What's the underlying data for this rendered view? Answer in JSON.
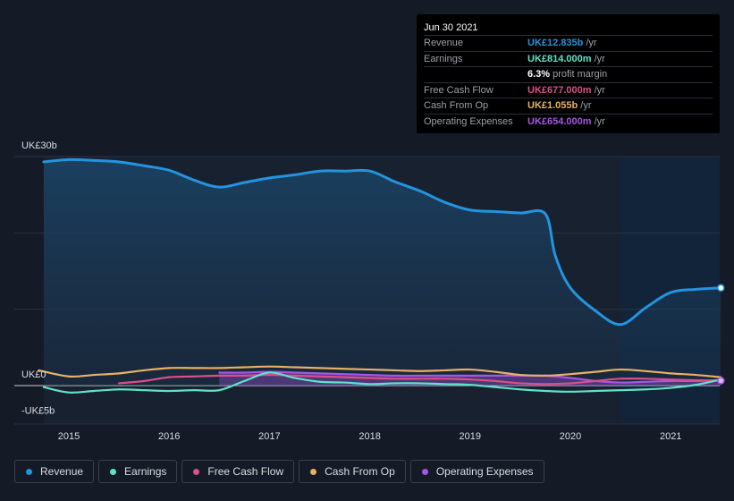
{
  "tooltip": {
    "date": "Jun 30 2021",
    "rows": [
      {
        "label": "Revenue",
        "value": "UK£12.835b",
        "unit": "/yr",
        "color": "#2394df"
      },
      {
        "label": "Earnings",
        "value": "UK£814.000m",
        "unit": "/yr",
        "color": "#5ee3c8"
      },
      {
        "label": "",
        "value": "6.3%",
        "unit": "profit margin",
        "color": "#ffffff"
      },
      {
        "label": "Free Cash Flow",
        "value": "UK£677.000m",
        "unit": "/yr",
        "color": "#d9508a"
      },
      {
        "label": "Cash From Op",
        "value": "UK£1.055b",
        "unit": "/yr",
        "color": "#e8b064"
      },
      {
        "label": "Operating Expenses",
        "value": "UK£654.000m",
        "unit": "/yr",
        "color": "#a855e6"
      }
    ]
  },
  "legend": [
    {
      "label": "Revenue",
      "color": "#2394df"
    },
    {
      "label": "Earnings",
      "color": "#5ee3c8"
    },
    {
      "label": "Free Cash Flow",
      "color": "#d9508a"
    },
    {
      "label": "Cash From Op",
      "color": "#e8b064"
    },
    {
      "label": "Operating Expenses",
      "color": "#a855e6"
    }
  ],
  "chart_data": {
    "type": "area",
    "ylim": [
      -5,
      30
    ],
    "y_tick_labels": [
      {
        "value": 30,
        "label": "UK£30b"
      },
      {
        "value": 0,
        "label": "UK£0"
      },
      {
        "value": -5,
        "label": "-UK£5b"
      }
    ],
    "x_ticks": [
      2015,
      2016,
      2017,
      2018,
      2019,
      2020,
      2021
    ],
    "xlim": [
      2014.7,
      2021.5
    ],
    "forecast_start": 2020.5,
    "series": [
      {
        "name": "Revenue",
        "color": "#2394df",
        "fill": true,
        "x": [
          2014.75,
          2015.0,
          2015.25,
          2015.5,
          2015.75,
          2016.0,
          2016.25,
          2016.5,
          2016.75,
          2017.0,
          2017.25,
          2017.5,
          2017.75,
          2018.0,
          2018.25,
          2018.5,
          2018.75,
          2019.0,
          2019.25,
          2019.5,
          2019.75,
          2019.85,
          2020.0,
          2020.25,
          2020.5,
          2020.75,
          2021.0,
          2021.25,
          2021.5
        ],
        "y": [
          29.3,
          29.6,
          29.5,
          29.3,
          28.8,
          28.2,
          26.9,
          26.0,
          26.6,
          27.2,
          27.6,
          28.1,
          28.1,
          28.1,
          26.7,
          25.5,
          24.0,
          23.0,
          22.8,
          22.6,
          22.5,
          17.0,
          12.8,
          9.8,
          8.0,
          10.2,
          12.2,
          12.6,
          12.8
        ]
      },
      {
        "name": "Earnings",
        "color": "#5ee3c8",
        "fill": false,
        "x": [
          2014.75,
          2015.0,
          2015.25,
          2015.5,
          2015.75,
          2016.0,
          2016.25,
          2016.5,
          2016.75,
          2017.0,
          2017.25,
          2017.5,
          2017.75,
          2018.0,
          2018.25,
          2018.5,
          2018.75,
          2019.0,
          2019.25,
          2019.5,
          2019.75,
          2020.0,
          2020.25,
          2020.5,
          2020.75,
          2021.0,
          2021.25,
          2021.5
        ],
        "y": [
          -0.2,
          -0.9,
          -0.7,
          -0.5,
          -0.6,
          -0.7,
          -0.6,
          -0.6,
          0.6,
          1.7,
          1.0,
          0.5,
          0.4,
          0.2,
          0.3,
          0.3,
          0.2,
          0.1,
          -0.2,
          -0.5,
          -0.7,
          -0.8,
          -0.7,
          -0.6,
          -0.5,
          -0.3,
          0.1,
          0.8
        ]
      },
      {
        "name": "Free Cash Flow",
        "color": "#d9508a",
        "fill": false,
        "x": [
          2015.5,
          2015.75,
          2016.0,
          2016.25,
          2016.5,
          2016.75,
          2017.0,
          2017.25,
          2017.5,
          2017.75,
          2018.0,
          2018.25,
          2018.5,
          2018.75,
          2019.0,
          2019.25,
          2019.5,
          2019.75,
          2020.0,
          2020.25,
          2020.5,
          2020.75,
          2021.0,
          2021.25,
          2021.5
        ],
        "y": [
          0.3,
          0.6,
          1.1,
          1.2,
          1.3,
          1.3,
          1.4,
          1.3,
          1.2,
          1.1,
          1.0,
          0.9,
          0.9,
          0.9,
          0.8,
          0.6,
          0.3,
          0.2,
          0.3,
          0.6,
          0.9,
          0.9,
          0.8,
          0.7,
          0.7
        ]
      },
      {
        "name": "Cash From Op",
        "color": "#e8b064",
        "fill": false,
        "x": [
          2014.7,
          2015.0,
          2015.25,
          2015.5,
          2015.75,
          2016.0,
          2016.25,
          2016.5,
          2016.75,
          2017.0,
          2017.25,
          2017.5,
          2017.75,
          2018.0,
          2018.25,
          2018.5,
          2018.75,
          2019.0,
          2019.25,
          2019.5,
          2019.75,
          2020.0,
          2020.25,
          2020.5,
          2020.75,
          2021.0,
          2021.25,
          2021.5
        ],
        "y": [
          2.0,
          1.2,
          1.4,
          1.6,
          2.0,
          2.3,
          2.3,
          2.3,
          2.4,
          2.5,
          2.4,
          2.3,
          2.2,
          2.1,
          2.0,
          1.9,
          2.0,
          2.1,
          1.8,
          1.4,
          1.3,
          1.5,
          1.8,
          2.1,
          1.9,
          1.6,
          1.4,
          1.1
        ]
      },
      {
        "name": "Operating Expenses",
        "color": "#a855e6",
        "fill": true,
        "x": [
          2016.5,
          2016.75,
          2017.0,
          2017.25,
          2017.5,
          2017.75,
          2018.0,
          2018.25,
          2018.5,
          2018.75,
          2019.0,
          2019.25,
          2019.5,
          2019.75,
          2020.0,
          2020.25,
          2020.5,
          2020.75,
          2021.0,
          2021.25,
          2021.5
        ],
        "y": [
          1.7,
          1.7,
          1.8,
          1.7,
          1.6,
          1.5,
          1.4,
          1.3,
          1.3,
          1.3,
          1.3,
          1.3,
          1.3,
          1.3,
          1.0,
          0.6,
          0.4,
          0.5,
          0.6,
          0.6,
          0.65
        ]
      }
    ]
  }
}
